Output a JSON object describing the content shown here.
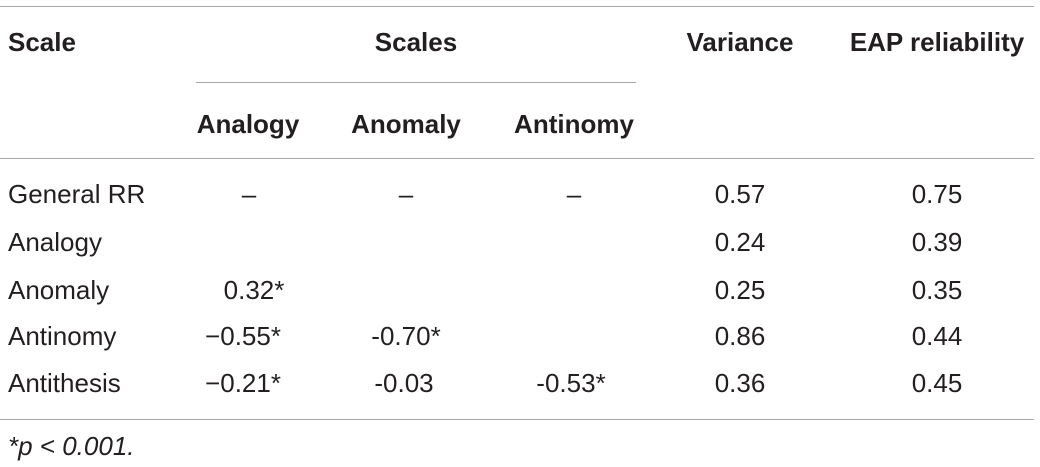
{
  "table": {
    "header": {
      "scale": "Scale",
      "scales_group": "Scales",
      "variance": "Variance",
      "eap": "EAP reliability",
      "sub": [
        "Analogy",
        "Anomaly",
        "Antinomy"
      ]
    },
    "rows": [
      {
        "label": "General RR",
        "analogy": "–",
        "anomaly": "–",
        "antinomy": "–",
        "variance": "0.57",
        "eap": "0.75"
      },
      {
        "label": "Analogy",
        "analogy": "",
        "anomaly": "",
        "antinomy": "",
        "variance": "0.24",
        "eap": "0.39"
      },
      {
        "label": "Anomaly",
        "analogy": "0.32*",
        "anomaly": "",
        "antinomy": "",
        "variance": "0.25",
        "eap": "0.35"
      },
      {
        "label": "Antinomy",
        "analogy": "−0.55*",
        "anomaly": "-0.70*",
        "antinomy": "",
        "variance": "0.86",
        "eap": "0.44"
      },
      {
        "label": "Antithesis",
        "analogy": "−0.21*",
        "anomaly": "-0.03",
        "antinomy": "-0.53*",
        "variance": "0.36",
        "eap": "0.45"
      }
    ],
    "footnote": "*p < 0.001."
  }
}
